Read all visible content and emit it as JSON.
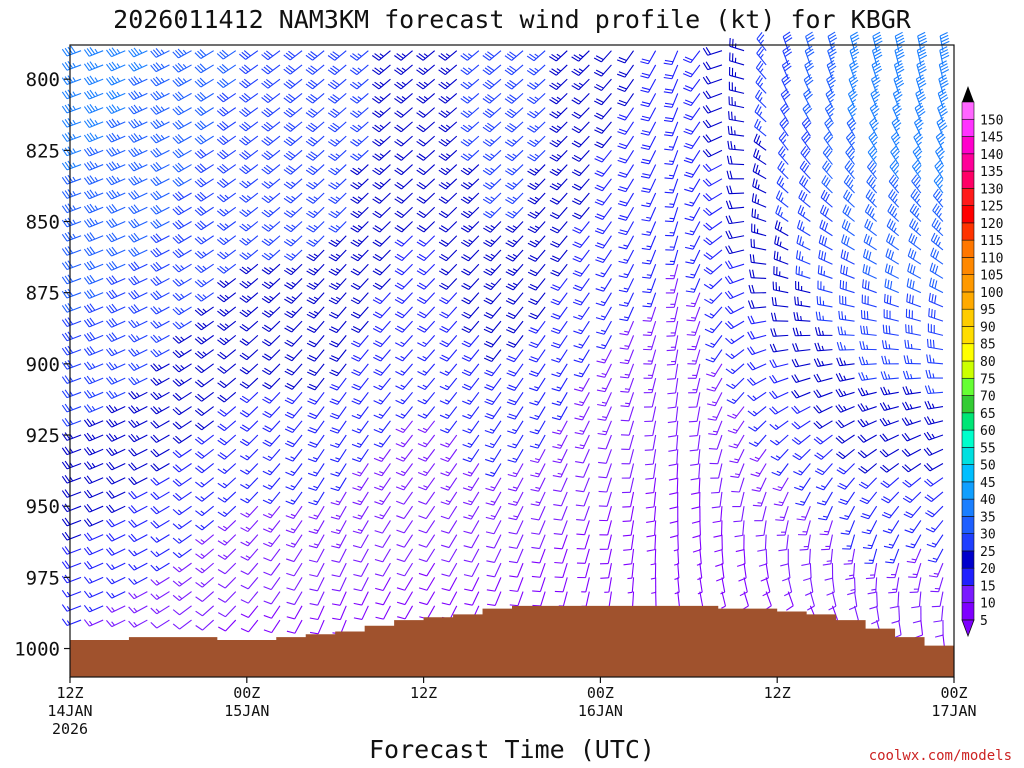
{
  "chart_data": {
    "type": "wind-barb-profile",
    "title": "2026011412 NAM3KM forecast wind profile (kt) for KBGR",
    "xlabel": "Forecast Time (UTC)",
    "ylabel": "",
    "watermark": "coolwx.com/models",
    "y_axis": {
      "unit": "hPa",
      "range": [
        788,
        1010
      ],
      "ticks": [
        {
          "value": 800,
          "label": "800"
        },
        {
          "value": 825,
          "label": "825"
        },
        {
          "value": 850,
          "label": "850"
        },
        {
          "value": 875,
          "label": "875"
        },
        {
          "value": 900,
          "label": "900"
        },
        {
          "value": 925,
          "label": "925"
        },
        {
          "value": 950,
          "label": "950"
        },
        {
          "value": 975,
          "label": "975"
        },
        {
          "value": 1000,
          "label": "1000"
        }
      ]
    },
    "x_axis": {
      "unit": "forecast hour",
      "range": [
        0,
        60
      ],
      "ticks": [
        {
          "value": 0,
          "line1": "12Z",
          "line2": "14JAN",
          "line3": "2026"
        },
        {
          "value": 12,
          "line1": "00Z",
          "line2": "15JAN",
          "line3": ""
        },
        {
          "value": 24,
          "line1": "12Z",
          "line2": "",
          "line3": ""
        },
        {
          "value": 36,
          "line1": "00Z",
          "line2": "16JAN",
          "line3": ""
        },
        {
          "value": 48,
          "line1": "12Z",
          "line2": "",
          "line3": ""
        },
        {
          "value": 60,
          "line1": "00Z",
          "line2": "17JAN",
          "line3": ""
        }
      ]
    },
    "colorbar": {
      "levels": [
        5,
        10,
        15,
        20,
        25,
        30,
        35,
        40,
        45,
        50,
        55,
        60,
        65,
        70,
        75,
        80,
        85,
        90,
        95,
        100,
        105,
        110,
        115,
        120,
        125,
        130,
        135,
        140,
        145,
        150
      ],
      "labels": [
        "5",
        "10",
        "15",
        "20",
        "25",
        "30",
        "35",
        "40",
        "45",
        "50",
        "55",
        "60",
        "65",
        "70",
        "75",
        "80",
        "85",
        "90",
        "95",
        "100",
        "105",
        "110",
        "115",
        "120",
        "125",
        "130",
        "135",
        "140",
        "145",
        "150"
      ],
      "colors": [
        "#7f00ff",
        "#7a1aff",
        "#2020ff",
        "#0000cc",
        "#1f3fff",
        "#1e5fff",
        "#1a7fff",
        "#109fff",
        "#00bfff",
        "#00e0e0",
        "#00ffcc",
        "#00e676",
        "#33cc33",
        "#66ff33",
        "#ccff00",
        "#ffff00",
        "#ffdd00",
        "#ffcc00",
        "#ffaa00",
        "#ff9900",
        "#ff8800",
        "#ff7700",
        "#ff3300",
        "#ff0000",
        "#ff1a1a",
        "#ff0066",
        "#ff0099",
        "#ff00cc",
        "#ff33ff",
        "#ff66ff"
      ]
    },
    "terrain": {
      "color": "#a0522d",
      "surface_pressure_hpa": [
        {
          "hour": 0,
          "p": 997
        },
        {
          "hour": 2,
          "p": 997
        },
        {
          "hour": 4,
          "p": 996
        },
        {
          "hour": 6,
          "p": 996
        },
        {
          "hour": 8,
          "p": 996
        },
        {
          "hour": 10,
          "p": 997
        },
        {
          "hour": 12,
          "p": 997
        },
        {
          "hour": 14,
          "p": 996
        },
        {
          "hour": 16,
          "p": 995
        },
        {
          "hour": 18,
          "p": 994
        },
        {
          "hour": 20,
          "p": 992
        },
        {
          "hour": 22,
          "p": 990
        },
        {
          "hour": 24,
          "p": 989
        },
        {
          "hour": 26,
          "p": 988
        },
        {
          "hour": 28,
          "p": 986
        },
        {
          "hour": 30,
          "p": 985
        },
        {
          "hour": 32,
          "p": 985
        },
        {
          "hour": 34,
          "p": 985
        },
        {
          "hour": 36,
          "p": 985
        },
        {
          "hour": 38,
          "p": 985
        },
        {
          "hour": 40,
          "p": 985
        },
        {
          "hour": 42,
          "p": 985
        },
        {
          "hour": 44,
          "p": 986
        },
        {
          "hour": 46,
          "p": 986
        },
        {
          "hour": 48,
          "p": 987
        },
        {
          "hour": 50,
          "p": 988
        },
        {
          "hour": 52,
          "p": 990
        },
        {
          "hour": 54,
          "p": 993
        },
        {
          "hour": 56,
          "p": 996
        },
        {
          "hour": 58,
          "p": 999
        },
        {
          "hour": 60,
          "p": 1003
        }
      ]
    },
    "barb_grid": {
      "hours_step": 1.5,
      "pressure_levels": [
        790,
        795,
        800,
        805,
        810,
        815,
        820,
        825,
        830,
        835,
        840,
        845,
        850,
        855,
        860,
        865,
        870,
        875,
        880,
        885,
        890,
        895,
        900,
        905,
        910,
        915,
        920,
        925,
        930,
        935,
        940,
        945,
        950,
        955,
        960,
        965,
        970,
        975,
        980,
        985,
        990,
        995,
        1000
      ],
      "wind_profile": [
        {
          "hour": 0,
          "low_dir": 250,
          "low_spd": 15,
          "high_dir": 250,
          "high_spd": 38
        },
        {
          "hour": 6,
          "low_dir": 240,
          "low_spd": 12,
          "high_dir": 245,
          "high_spd": 35
        },
        {
          "hour": 12,
          "low_dir": 220,
          "low_spd": 8,
          "high_dir": 235,
          "high_spd": 30
        },
        {
          "hour": 18,
          "low_dir": 200,
          "low_spd": 8,
          "high_dir": 230,
          "high_spd": 30
        },
        {
          "hour": 24,
          "low_dir": 210,
          "low_spd": 8,
          "high_dir": 230,
          "high_spd": 22
        },
        {
          "hour": 30,
          "low_dir": 200,
          "low_spd": 8,
          "high_dir": 230,
          "high_spd": 30
        },
        {
          "hour": 36,
          "low_dir": 190,
          "low_spd": 6,
          "high_dir": 225,
          "high_spd": 22
        },
        {
          "hour": 42,
          "low_dir": 170,
          "low_spd": 5,
          "high_dir": 200,
          "high_spd": 18
        },
        {
          "hour": 48,
          "low_dir": 150,
          "low_spd": 8,
          "high_dir": 340,
          "high_spd": 28
        },
        {
          "hour": 54,
          "low_dir": 160,
          "low_spd": 10,
          "high_dir": 345,
          "high_spd": 38
        },
        {
          "hour": 60,
          "low_dir": 170,
          "low_spd": 8,
          "high_dir": 350,
          "high_spd": 40
        }
      ]
    }
  }
}
